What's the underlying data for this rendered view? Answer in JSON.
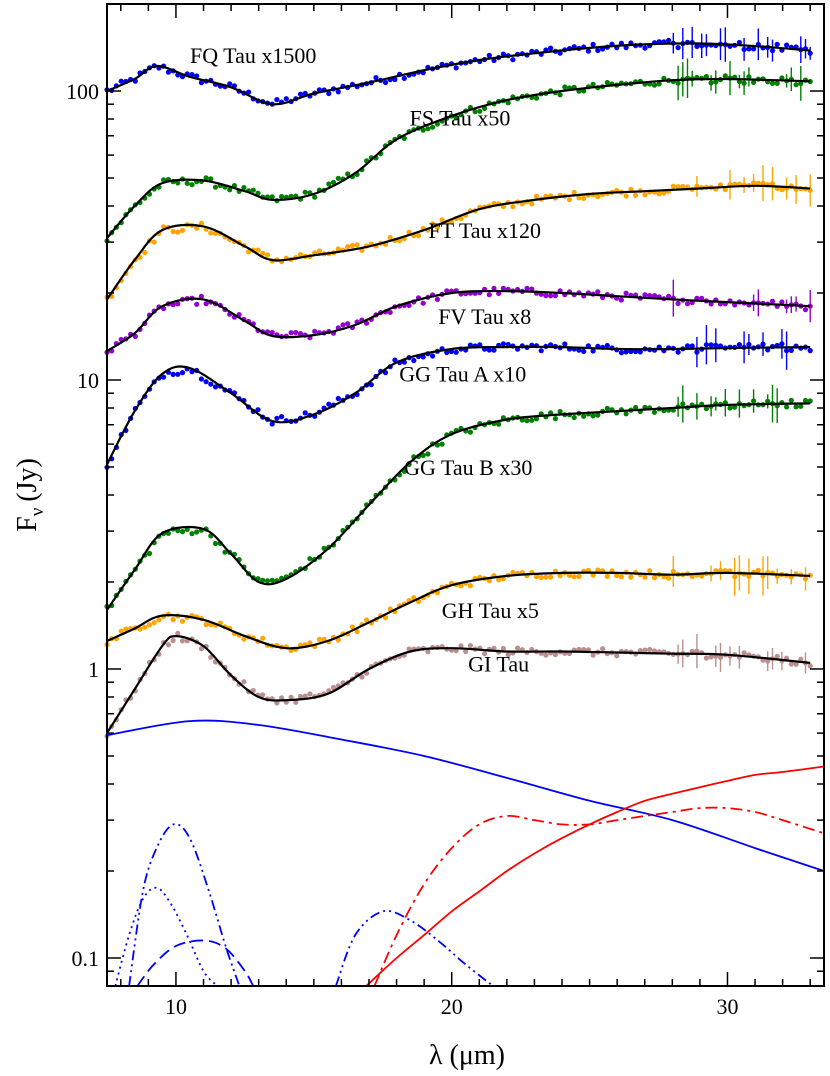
{
  "chart_data": {
    "type": "line",
    "title": "",
    "xlabel": "λ (μm)",
    "ylabel": "F",
    "ylabel_sub": "ν",
    "ylabel_unit": "(Jy)",
    "xscale": "linear",
    "yscale": "log",
    "xlim": [
      7.5,
      33.5
    ],
    "ylim": [
      0.08,
      200
    ],
    "grid": false,
    "x_ticks": [
      {
        "value": 10,
        "label": "10"
      },
      {
        "value": 20,
        "label": "20"
      },
      {
        "value": 30,
        "label": "30"
      }
    ],
    "y_ticks": [
      {
        "value": 0.1,
        "label": "0.1"
      },
      {
        "value": 1,
        "label": "1"
      },
      {
        "value": 10,
        "label": "10"
      },
      {
        "value": 100,
        "label": "100"
      }
    ],
    "series": [
      {
        "name": "FQ Tau x1500",
        "color": "#0000ff",
        "label_x": 12.8,
        "label_y": 125,
        "x": [
          7.5,
          8.5,
          9.3,
          10.5,
          12,
          13.5,
          15,
          17,
          19,
          21,
          23,
          25,
          27,
          29,
          31,
          33
        ],
        "y": [
          100,
          110,
          122,
          112,
          103,
          90,
          98,
          107,
          118,
          128,
          135,
          141,
          145,
          146,
          143,
          138
        ]
      },
      {
        "name": "FS Tau x50",
        "color": "#008000",
        "label_x": 20.3,
        "label_y": 76,
        "x": [
          7.5,
          8.5,
          9.5,
          11,
          12.5,
          13.5,
          15,
          16.5,
          18,
          20,
          22,
          24,
          26,
          28,
          30,
          33
        ],
        "y": [
          31,
          40,
          48,
          49,
          45,
          42,
          44,
          52,
          68,
          82,
          93,
          100,
          105,
          109,
          110,
          108
        ]
      },
      {
        "name": "FT Tau x120",
        "color": "#ffa500",
        "label_x": 21.2,
        "label_y": 31,
        "x": [
          7.5,
          8.5,
          9.5,
          11,
          12.5,
          13.5,
          15,
          17,
          19,
          21,
          23,
          25,
          27,
          29,
          31,
          33
        ],
        "y": [
          19,
          26,
          33,
          34,
          29,
          26,
          27,
          29,
          33,
          39,
          42,
          44,
          45,
          46,
          47,
          46
        ]
      },
      {
        "name": "FV Tau x8",
        "color": "#9400d3",
        "label_x": 21.2,
        "label_y": 15.6,
        "x": [
          7.5,
          8.5,
          9.5,
          11,
          12.5,
          13.5,
          15,
          16.5,
          18,
          20,
          22,
          24,
          26,
          28,
          30,
          33
        ],
        "y": [
          12.6,
          14.5,
          18,
          19,
          16,
          14.2,
          14.3,
          15.5,
          18,
          20,
          20.3,
          20,
          19.5,
          19,
          18.6,
          18
        ]
      },
      {
        "name": "GG Tau A x10",
        "color": "#0000ff",
        "label_x": 20.4,
        "label_y": 9.9,
        "x": [
          7.5,
          8.5,
          9.5,
          10.5,
          12,
          13.5,
          15,
          16.5,
          18,
          20,
          22,
          24,
          26,
          28,
          30,
          33
        ],
        "y": [
          5.1,
          7.8,
          10.5,
          11,
          9,
          7.2,
          7.6,
          9,
          11.5,
          12.8,
          13,
          13,
          12.8,
          12.8,
          12.9,
          13
        ]
      },
      {
        "name": "GG Tau B x30",
        "color": "#008000",
        "label_x": 20.6,
        "label_y": 4.7,
        "x": [
          7.5,
          8.5,
          9.5,
          11,
          12,
          13,
          14,
          15.5,
          17,
          18.5,
          20,
          22,
          24,
          26,
          28,
          30,
          33
        ],
        "y": [
          1.6,
          2.2,
          2.95,
          3.05,
          2.5,
          2.0,
          2.05,
          2.6,
          3.7,
          5.2,
          6.5,
          7.3,
          7.6,
          7.8,
          8.0,
          8.2,
          8.3
        ]
      },
      {
        "name": "GH Tau x5",
        "color": "#ffa500",
        "label_x": 21.4,
        "label_y": 1.5,
        "x": [
          7.5,
          8.5,
          9.5,
          11,
          12.5,
          14,
          15.5,
          17,
          18.5,
          20,
          22,
          24,
          26,
          28,
          30,
          33
        ],
        "y": [
          1.25,
          1.38,
          1.53,
          1.48,
          1.3,
          1.18,
          1.25,
          1.45,
          1.7,
          1.95,
          2.1,
          2.15,
          2.15,
          2.12,
          2.15,
          2.1
        ]
      },
      {
        "name": "GI Tau",
        "color": "#bc8f8f",
        "label_x": 21.7,
        "label_y": 0.98,
        "x": [
          7.5,
          8.5,
          9.5,
          10,
          11,
          12,
          13,
          14,
          15.5,
          17,
          18.5,
          20,
          22,
          24,
          26,
          28,
          30,
          33
        ],
        "y": [
          0.6,
          0.85,
          1.2,
          1.3,
          1.2,
          0.95,
          0.8,
          0.78,
          0.82,
          1.0,
          1.15,
          1.18,
          1.15,
          1.15,
          1.14,
          1.13,
          1.12,
          1.05
        ]
      }
    ],
    "components": [
      {
        "name": "blue solid",
        "color": "#0000ff",
        "dash": "",
        "x": [
          7.5,
          10.5,
          13,
          16,
          19,
          22,
          25,
          28,
          31,
          33.5
        ],
        "y": [
          0.59,
          0.66,
          0.64,
          0.57,
          0.5,
          0.42,
          0.35,
          0.3,
          0.24,
          0.2
        ]
      },
      {
        "name": "blue dash-dot-dot silicate",
        "color": "#0000ff",
        "dash": "10,4,2,4,2,4",
        "x": [
          8.3,
          8.8,
          9.3,
          9.9,
          10.5,
          11.2,
          11.8,
          12.3
        ],
        "y": [
          0.08,
          0.17,
          0.24,
          0.29,
          0.26,
          0.17,
          0.11,
          0.08
        ]
      },
      {
        "name": "blue dotted",
        "color": "#0000ff",
        "dash": "2,4",
        "x": [
          7.8,
          8.3,
          8.8,
          9.3,
          9.8,
          10.4,
          11,
          11.5
        ],
        "y": [
          0.08,
          0.12,
          0.16,
          0.175,
          0.155,
          0.12,
          0.09,
          0.08
        ]
      },
      {
        "name": "blue dashed",
        "color": "#0000ff",
        "dash": "12,6",
        "x": [
          8.6,
          9.2,
          10,
          11,
          11.8,
          12.5,
          12.8
        ],
        "y": [
          0.08,
          0.095,
          0.11,
          0.115,
          0.108,
          0.09,
          0.08
        ]
      },
      {
        "name": "blue dash-dot-dot second",
        "color": "#0000ff",
        "dash": "10,4,2,4,2,4",
        "x": [
          15.8,
          16.5,
          17.5,
          18.5,
          19.5,
          20.5,
          21.5
        ],
        "y": [
          0.08,
          0.12,
          0.145,
          0.135,
          0.115,
          0.095,
          0.08
        ]
      },
      {
        "name": "red dash-dot",
        "color": "#ff0000",
        "dash": "12,5,3,5",
        "x": [
          17.2,
          18,
          19,
          20,
          21,
          22,
          23,
          24,
          25,
          26,
          27,
          28,
          29,
          30,
          31,
          32,
          33.5
        ],
        "y": [
          0.08,
          0.12,
          0.18,
          0.24,
          0.29,
          0.31,
          0.3,
          0.29,
          0.29,
          0.3,
          0.31,
          0.32,
          0.33,
          0.33,
          0.32,
          0.3,
          0.27
        ]
      },
      {
        "name": "red solid",
        "color": "#ff0000",
        "dash": "",
        "x": [
          16.9,
          18,
          19,
          20,
          21,
          22,
          23,
          24,
          25,
          26,
          27,
          28,
          29,
          30,
          31,
          32,
          33.5
        ],
        "y": [
          0.08,
          0.1,
          0.12,
          0.145,
          0.17,
          0.2,
          0.23,
          0.26,
          0.29,
          0.32,
          0.35,
          0.37,
          0.39,
          0.41,
          0.43,
          0.44,
          0.46
        ]
      }
    ]
  }
}
